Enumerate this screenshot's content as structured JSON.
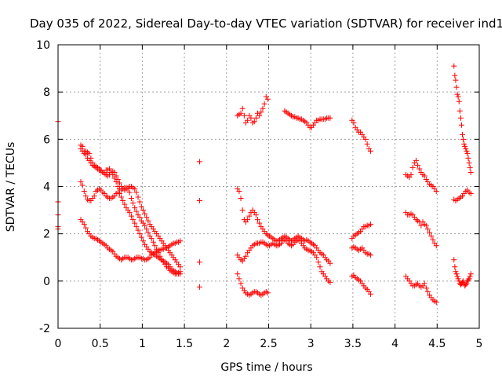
{
  "chart_data": {
    "type": "scatter",
    "title": "Day 035 of 2022, Sidereal Day-to-day VTEC variation (SDTVAR) for receiver ind1",
    "xlabel": "GPS time / hours",
    "ylabel": "SDTVAR / TECUs",
    "xlim": [
      0,
      5
    ],
    "ylim": [
      -2,
      10
    ],
    "xticks": [
      0,
      0.5,
      1,
      1.5,
      2,
      2.5,
      3,
      3.5,
      4,
      4.5,
      5
    ],
    "xtick_labels": [
      "0",
      "0.5",
      "1",
      "1.5",
      "2",
      "2.5",
      "3",
      "3.5",
      "4",
      "4.5",
      "5"
    ],
    "yticks": [
      -2,
      0,
      2,
      4,
      6,
      8,
      10
    ],
    "ytick_labels": [
      "-2",
      "0",
      "2",
      "4",
      "6",
      "8",
      "10"
    ],
    "grid": true,
    "marker": "+",
    "color": "#ff0000",
    "series": [
      {
        "name": "SDTVAR",
        "x": [
          0.0,
          0.0,
          0.0,
          0.0,
          0.0,
          0.27,
          0.29,
          0.31,
          0.33,
          0.35,
          0.37,
          0.39,
          0.41,
          0.43,
          0.45,
          0.47,
          0.49,
          0.51,
          0.53,
          0.55,
          0.57,
          0.59,
          0.61,
          0.63,
          0.65,
          0.67,
          0.69,
          0.71,
          0.73,
          0.75,
          0.77,
          0.79,
          0.81,
          0.83,
          0.85,
          0.87,
          0.89,
          0.91,
          0.93,
          0.95,
          0.97,
          0.99,
          1.01,
          1.03,
          1.05,
          1.07,
          1.09,
          1.11,
          1.13,
          1.15,
          1.17,
          1.19,
          1.21,
          1.23,
          1.25,
          1.27,
          1.29,
          1.31,
          1.33,
          1.35,
          1.37,
          1.39,
          1.41,
          1.43,
          1.45,
          0.27,
          0.29,
          0.31,
          0.33,
          0.35,
          0.37,
          0.39,
          0.41,
          0.43,
          0.45,
          0.47,
          0.49,
          0.51,
          0.53,
          0.55,
          0.57,
          0.59,
          0.61,
          0.63,
          0.65,
          0.67,
          0.69,
          0.71,
          0.73,
          0.75,
          0.77,
          0.79,
          0.81,
          0.83,
          0.85,
          0.87,
          0.89,
          0.91,
          0.93,
          0.95,
          0.97,
          0.99,
          1.01,
          1.03,
          1.05,
          1.07,
          1.09,
          1.11,
          1.13,
          1.15,
          1.17,
          1.19,
          1.21,
          1.23,
          1.25,
          1.27,
          1.29,
          1.31,
          1.33,
          1.35,
          1.37,
          1.39,
          1.41,
          1.43,
          1.45,
          0.27,
          0.29,
          0.31,
          0.33,
          0.35,
          0.37,
          0.39,
          0.41,
          0.43,
          0.45,
          0.47,
          0.49,
          0.51,
          0.53,
          0.55,
          0.57,
          0.59,
          0.61,
          0.63,
          0.65,
          0.67,
          0.69,
          0.71,
          0.73,
          0.75,
          0.77,
          0.79,
          0.81,
          0.83,
          0.85,
          0.87,
          0.89,
          0.91,
          0.93,
          0.95,
          0.97,
          0.99,
          1.01,
          1.03,
          1.05,
          1.07,
          1.09,
          1.11,
          1.13,
          1.15,
          1.17,
          1.19,
          1.21,
          1.23,
          1.25,
          1.27,
          1.29,
          1.31,
          1.33,
          1.35,
          1.37,
          1.39,
          1.41,
          1.43,
          1.45,
          0.27,
          0.29,
          0.31,
          0.33,
          0.35,
          0.37,
          0.39,
          0.41,
          0.43,
          0.45,
          0.47,
          0.49,
          0.51,
          0.53,
          0.55,
          0.57,
          0.59,
          0.61,
          0.63,
          0.65,
          0.67,
          0.69,
          0.71,
          0.73,
          0.75,
          0.77,
          0.79,
          0.81,
          0.83,
          0.85,
          0.87,
          0.89,
          0.91,
          0.93,
          0.95,
          0.97,
          0.99,
          1.01,
          1.03,
          1.05,
          1.07,
          1.09,
          1.11,
          1.13,
          1.15,
          1.17,
          1.19,
          1.21,
          1.23,
          1.25,
          1.27,
          1.29,
          1.31,
          1.33,
          1.35,
          1.37,
          1.39,
          1.41,
          1.43,
          1.45,
          1.68,
          1.68,
          1.68,
          1.68,
          2.13,
          2.15,
          2.17,
          2.19,
          2.21,
          2.23,
          2.25,
          2.27,
          2.29,
          2.31,
          2.33,
          2.35,
          2.37,
          2.39,
          2.41,
          2.43,
          2.45,
          2.47,
          2.49,
          2.13,
          2.15,
          2.17,
          2.19,
          2.21,
          2.23,
          2.25,
          2.27,
          2.29,
          2.31,
          2.33,
          2.35,
          2.37,
          2.39,
          2.41,
          2.43,
          2.45,
          2.47,
          2.49,
          2.51,
          2.53,
          2.55,
          2.57,
          2.59,
          2.61,
          2.63,
          2.65,
          2.67,
          2.69,
          2.71,
          2.73,
          2.75,
          2.77,
          2.79,
          2.81,
          2.83,
          2.85,
          2.87,
          2.89,
          2.91,
          2.93,
          2.95,
          2.97,
          2.99,
          3.01,
          3.03,
          3.05,
          3.07,
          3.09,
          3.11,
          3.13,
          3.15,
          3.17,
          3.19,
          3.21,
          3.23,
          2.13,
          2.15,
          2.17,
          2.19,
          2.21,
          2.23,
          2.25,
          2.27,
          2.29,
          2.31,
          2.33,
          2.35,
          2.37,
          2.39,
          2.41,
          2.43,
          2.45,
          2.47,
          2.49,
          2.51,
          2.53,
          2.55,
          2.57,
          2.59,
          2.61,
          2.63,
          2.65,
          2.67,
          2.69,
          2.71,
          2.73,
          2.75,
          2.77,
          2.79,
          2.81,
          2.83,
          2.85,
          2.87,
          2.89,
          2.91,
          2.93,
          2.95,
          2.97,
          2.99,
          3.01,
          3.03,
          3.05,
          3.07,
          3.09,
          3.11,
          3.13,
          3.15,
          3.17,
          3.19,
          3.21,
          3.23,
          2.13,
          2.15,
          2.17,
          2.19,
          2.21,
          2.23,
          2.25,
          2.27,
          2.29,
          2.31,
          2.33,
          2.35,
          2.37,
          2.39,
          2.41,
          2.43,
          2.45,
          2.47,
          2.49,
          2.69,
          2.71,
          2.73,
          2.75,
          2.77,
          2.79,
          2.81,
          2.83,
          2.85,
          2.87,
          2.89,
          2.91,
          2.93,
          2.95,
          2.97,
          2.99,
          3.01,
          3.03,
          3.05,
          3.07,
          3.09,
          3.11,
          3.13,
          3.15,
          3.17,
          3.19,
          3.21,
          3.23,
          3.49,
          3.51,
          3.53,
          3.55,
          3.57,
          3.59,
          3.61,
          3.63,
          3.65,
          3.67,
          3.69,
          3.71,
          3.49,
          3.51,
          3.53,
          3.55,
          3.57,
          3.59,
          3.61,
          3.63,
          3.65,
          3.67,
          3.69,
          3.71,
          3.49,
          3.51,
          3.53,
          3.55,
          3.57,
          3.59,
          3.61,
          3.63,
          3.65,
          3.67,
          3.69,
          3.71,
          3.49,
          3.51,
          3.53,
          3.55,
          3.57,
          3.59,
          3.61,
          3.63,
          3.65,
          3.67,
          3.69,
          3.71,
          4.13,
          4.15,
          4.17,
          4.19,
          4.21,
          4.23,
          4.25,
          4.27,
          4.29,
          4.31,
          4.33,
          4.35,
          4.37,
          4.39,
          4.41,
          4.43,
          4.45,
          4.47,
          4.49,
          4.13,
          4.15,
          4.17,
          4.19,
          4.21,
          4.23,
          4.25,
          4.27,
          4.29,
          4.31,
          4.33,
          4.35,
          4.37,
          4.39,
          4.41,
          4.43,
          4.45,
          4.47,
          4.49,
          4.13,
          4.15,
          4.17,
          4.19,
          4.21,
          4.23,
          4.25,
          4.27,
          4.29,
          4.31,
          4.33,
          4.35,
          4.37,
          4.39,
          4.41,
          4.43,
          4.45,
          4.47,
          4.49,
          4.7,
          4.71,
          4.72,
          4.73,
          4.74,
          4.75,
          4.76,
          4.77,
          4.78,
          4.79,
          4.8,
          4.81,
          4.82,
          4.83,
          4.84,
          4.85,
          4.86,
          4.87,
          4.88,
          4.89,
          4.9,
          4.7,
          4.72,
          4.74,
          4.76,
          4.78,
          4.8,
          4.82,
          4.84,
          4.86,
          4.88,
          4.9,
          4.7,
          4.71,
          4.72,
          4.73,
          4.74,
          4.75,
          4.76,
          4.77,
          4.78,
          4.79,
          4.8,
          4.81,
          4.82,
          4.83,
          4.84,
          4.85,
          4.86,
          4.87,
          4.88,
          4.89,
          4.9
        ],
        "y": [
          6.75,
          3.35,
          2.8,
          2.3,
          2.2,
          5.6,
          5.5,
          5.4,
          5.5,
          5.45,
          5.4,
          5.2,
          5.0,
          4.9,
          4.85,
          4.8,
          4.7,
          4.65,
          4.6,
          4.6,
          4.7,
          4.7,
          4.75,
          4.6,
          4.5,
          4.35,
          4.2,
          4.0,
          3.9,
          3.85,
          3.9,
          3.95,
          3.95,
          3.9,
          3.75,
          3.5,
          3.3,
          3.1,
          2.95,
          2.8,
          2.7,
          2.55,
          2.45,
          2.35,
          2.2,
          2.05,
          1.9,
          1.8,
          1.65,
          1.5,
          1.35,
          1.2,
          1.05,
          0.9,
          0.8,
          0.7,
          0.6,
          0.55,
          0.45,
          0.4,
          0.35,
          0.3,
          0.3,
          0.35,
          0.4,
          4.2,
          4.05,
          3.8,
          3.6,
          3.45,
          3.4,
          3.4,
          3.5,
          3.6,
          3.8,
          3.85,
          3.9,
          3.85,
          3.75,
          3.7,
          3.6,
          3.55,
          3.5,
          3.5,
          3.55,
          3.6,
          3.7,
          3.75,
          3.7,
          3.55,
          3.4,
          3.25,
          3.1,
          3.0,
          2.9,
          2.75,
          2.6,
          2.45,
          2.3,
          2.15,
          2.0,
          1.85,
          1.7,
          1.55,
          1.45,
          1.35,
          1.25,
          1.2,
          1.15,
          1.1,
          1.05,
          1.0,
          0.95,
          0.9,
          0.85,
          0.8,
          0.75,
          0.7,
          0.6,
          0.5,
          0.45,
          0.4,
          0.35,
          0.3,
          0.3,
          2.6,
          2.5,
          2.4,
          2.25,
          2.1,
          2.0,
          1.9,
          1.85,
          1.8,
          1.8,
          1.75,
          1.7,
          1.65,
          1.6,
          1.55,
          1.5,
          1.4,
          1.35,
          1.3,
          1.25,
          1.15,
          1.05,
          1.0,
          0.95,
          0.9,
          0.95,
          1.0,
          1.0,
          1.0,
          0.95,
          0.9,
          0.9,
          0.95,
          1.0,
          1.0,
          1.0,
          0.95,
          0.95,
          0.9,
          0.9,
          0.95,
          1.0,
          1.1,
          1.15,
          1.2,
          1.25,
          1.3,
          1.3,
          1.35,
          1.35,
          1.4,
          1.4,
          1.45,
          1.5,
          1.55,
          1.6,
          1.6,
          1.65,
          1.65,
          1.7,
          5.75,
          5.7,
          5.5,
          5.35,
          5.2,
          5.1,
          5.0,
          4.9,
          4.85,
          4.8,
          4.75,
          4.75,
          4.7,
          4.6,
          4.55,
          4.5,
          4.45,
          4.5,
          4.6,
          4.65,
          4.6,
          4.45,
          4.3,
          4.15,
          4.0,
          3.9,
          3.85,
          3.9,
          3.95,
          4.0,
          4.0,
          3.95,
          3.9,
          3.75,
          3.55,
          3.35,
          3.15,
          3.0,
          2.85,
          2.7,
          2.55,
          2.4,
          2.3,
          2.2,
          2.1,
          2.0,
          1.9,
          1.8,
          1.7,
          1.6,
          1.5,
          1.4,
          1.3,
          1.2,
          1.1,
          1.0,
          0.9,
          0.8,
          0.7,
          0.6,
          5.05,
          3.4,
          0.8,
          -0.25,
          7.0,
          7.05,
          7.1,
          7.3,
          7.0,
          6.7,
          6.8,
          7.0,
          6.9,
          6.7,
          6.75,
          6.9,
          7.1,
          7.0,
          7.15,
          7.3,
          7.5,
          7.8,
          7.7,
          3.9,
          3.8,
          3.5,
          3.0,
          2.6,
          2.5,
          2.6,
          2.75,
          2.9,
          3.0,
          2.9,
          2.8,
          2.6,
          2.45,
          2.3,
          2.2,
          2.1,
          2.0,
          1.95,
          1.9,
          1.85,
          1.8,
          1.75,
          1.7,
          1.7,
          1.75,
          1.8,
          1.85,
          1.9,
          1.85,
          1.8,
          1.75,
          1.7,
          1.75,
          1.8,
          1.85,
          1.9,
          1.85,
          1.8,
          1.75,
          1.7,
          1.75,
          1.7,
          1.65,
          1.6,
          1.55,
          1.5,
          1.4,
          1.3,
          1.2,
          1.15,
          1.1,
          1.0,
          0.9,
          0.85,
          0.75,
          1.1,
          1.0,
          0.9,
          0.85,
          0.95,
          1.05,
          1.2,
          1.3,
          1.4,
          1.5,
          1.55,
          1.6,
          1.6,
          1.6,
          1.65,
          1.65,
          1.6,
          1.55,
          1.5,
          1.5,
          1.55,
          1.6,
          1.55,
          1.5,
          1.5,
          1.55,
          1.6,
          1.7,
          1.75,
          1.7,
          1.6,
          1.55,
          1.5,
          1.55,
          1.65,
          1.7,
          1.75,
          1.7,
          1.6,
          1.5,
          1.4,
          1.35,
          1.3,
          1.3,
          1.25,
          1.2,
          1.1,
          1.0,
          0.8,
          0.6,
          0.4,
          0.3,
          0.2,
          0.1,
          0.0,
          -0.05,
          0.3,
          0.1,
          -0.1,
          -0.3,
          -0.4,
          -0.5,
          -0.55,
          -0.6,
          -0.55,
          -0.5,
          -0.45,
          -0.45,
          -0.5,
          -0.55,
          -0.6,
          -0.55,
          -0.5,
          -0.45,
          -0.5,
          7.2,
          7.15,
          7.1,
          7.05,
          7.0,
          6.95,
          6.95,
          6.9,
          6.9,
          6.85,
          6.85,
          6.8,
          6.75,
          6.7,
          6.6,
          6.5,
          6.5,
          6.6,
          6.7,
          6.8,
          6.8,
          6.85,
          6.85,
          6.85,
          6.85,
          6.9,
          6.9,
          6.9,
          6.8,
          6.7,
          6.5,
          6.4,
          6.3,
          6.3,
          6.2,
          6.1,
          6.0,
          5.8,
          5.6,
          5.5,
          1.8,
          1.9,
          1.95,
          2.0,
          2.05,
          2.1,
          2.2,
          2.3,
          2.3,
          2.35,
          2.35,
          2.4,
          1.4,
          1.45,
          1.4,
          1.35,
          1.3,
          1.35,
          1.4,
          1.3,
          1.2,
          1.15,
          1.15,
          1.1,
          0.2,
          0.25,
          0.15,
          0.1,
          0.05,
          0.0,
          -0.1,
          -0.2,
          -0.3,
          -0.35,
          -0.45,
          -0.55,
          4.5,
          4.45,
          4.4,
          4.5,
          4.8,
          5.0,
          5.1,
          4.9,
          4.75,
          4.6,
          4.5,
          4.45,
          4.3,
          4.2,
          4.1,
          4.05,
          4.0,
          3.9,
          3.8,
          2.9,
          2.8,
          2.8,
          2.85,
          2.8,
          2.7,
          2.6,
          2.55,
          2.5,
          2.35,
          2.5,
          2.4,
          2.35,
          2.2,
          2.05,
          1.9,
          1.75,
          1.6,
          1.5,
          0.2,
          0.1,
          0.0,
          -0.1,
          -0.2,
          -0.2,
          -0.15,
          -0.1,
          -0.2,
          -0.25,
          -0.2,
          -0.1,
          -0.3,
          -0.45,
          -0.6,
          -0.7,
          -0.8,
          -0.85,
          -0.9,
          9.1,
          8.7,
          8.5,
          8.2,
          7.9,
          7.8,
          7.6,
          7.2,
          6.9,
          6.6,
          6.2,
          6.0,
          5.8,
          5.7,
          5.6,
          5.5,
          5.4,
          5.2,
          5.0,
          4.8,
          4.6,
          3.45,
          3.4,
          3.45,
          3.5,
          3.55,
          3.6,
          3.7,
          3.8,
          3.85,
          3.75,
          3.7,
          0.9,
          0.6,
          0.4,
          0.3,
          0.2,
          0.1,
          0.0,
          -0.1,
          -0.15,
          -0.1,
          -0.05,
          0.0,
          -0.1,
          -0.2,
          -0.15,
          -0.1,
          0.0,
          0.05,
          0.1,
          0.2,
          0.3
        ]
      }
    ]
  }
}
